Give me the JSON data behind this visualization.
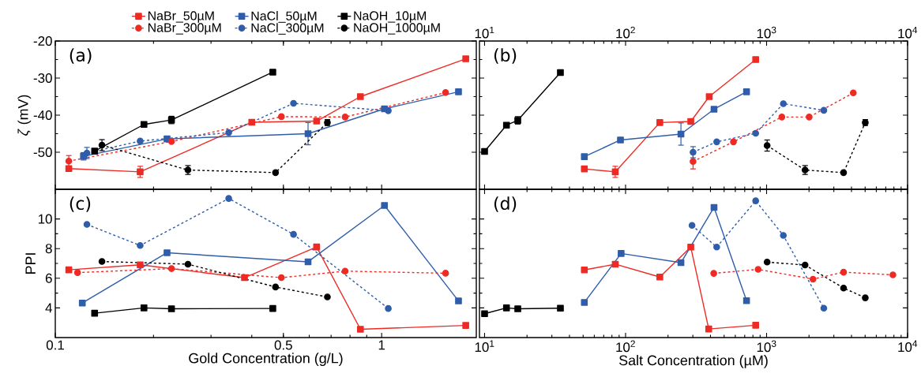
{
  "chart_data": [
    {
      "type": "line",
      "ylabel": "*ζ* (mV)",
      "xlim": [
        0.1,
        1.95
      ],
      "xticks": [
        0.1,
        0.5,
        1
      ],
      "ylim": [
        -60,
        -20
      ],
      "yticks": [
        -50,
        -40,
        -30,
        -20
      ],
      "log": "x",
      "legend": "top",
      "tick_labels": "y",
      "annotations": [
        "(a)"
      ],
      "series": [
        {
          "name": "NaBr_50µM",
          "color": "#ee2a24",
          "marker": "square",
          "line_style": "solid",
          "x": [
            0.11,
            0.182,
            0.4,
            0.632,
            0.861,
            1.81
          ],
          "values": [
            -54.4,
            -55.3,
            -41.9,
            -41.6,
            -35.0,
            -24.8
          ],
          "errors": [
            null,
            1.5,
            null,
            null,
            null,
            null
          ]
        },
        {
          "name": "NaCl_50µM",
          "color": "#2f5daa",
          "marker": "square",
          "line_style": "solid",
          "x": [
            0.122,
            0.22,
            0.595,
            1.02,
            1.72
          ],
          "values": [
            -51.1,
            -46.4,
            -45.0,
            -38.3,
            -33.7
          ],
          "errors": [
            1,
            null,
            3,
            null,
            null
          ]
        },
        {
          "name": "NaOH_10µM",
          "color": "#000000",
          "marker": "square",
          "line_style": "solid",
          "x": [
            0.132,
            0.187,
            0.227,
            0.464
          ],
          "values": [
            -49.7,
            -42.5,
            -41.3,
            -28.4
          ],
          "errors": [
            null,
            null,
            1,
            null
          ]
        },
        {
          "name": "NaBr_300µM",
          "color": "#ee2a24",
          "marker": "circle",
          "line_style": "dashed",
          "x": [
            0.11,
            0.227,
            0.493,
            0.773,
            1.57
          ],
          "values": [
            -52.4,
            -47.1,
            -40.4,
            -40.5,
            -33.9
          ],
          "errors": [
            1.5,
            null,
            null,
            null,
            null
          ]
        },
        {
          "name": "NaCl_300µM",
          "color": "#2f5daa",
          "marker": "circle",
          "line_style": "dashed",
          "x": [
            0.125,
            0.182,
            0.34,
            0.537,
            1.048
          ],
          "values": [
            -50.2,
            -47.0,
            -44.7,
            -36.8,
            -38.8
          ],
          "errors": [
            1.5,
            null,
            null,
            null,
            null
          ]
        },
        {
          "name": "NaOH_1000µM",
          "color": "#000000",
          "marker": "circle",
          "line_style": "dashed",
          "x": [
            0.139,
            0.255,
            0.473,
            0.682
          ],
          "values": [
            -48.1,
            -54.8,
            -55.5,
            -42.0
          ],
          "errors": [
            1.5,
            1.2,
            null,
            0.8
          ]
        }
      ]
    },
    {
      "type": "line",
      "xlim": [
        9.2,
        10000
      ],
      "xticks": [
        {
          "value": 10,
          "label": "10$^{1}$"
        },
        {
          "value": 100,
          "label": "10$^{2}$"
        },
        {
          "value": 1000,
          "label": "10$^{3}$"
        },
        {
          "value": 10000,
          "label": "10$^{4}$"
        }
      ],
      "ylim": [
        -60,
        -20
      ],
      "yticks": [
        -50,
        -40,
        -30,
        -20
      ],
      "log": "x",
      "tick_labels": "x",
      "annotations": [
        "(b)"
      ],
      "series": [
        {
          "color": "#ee2a24",
          "marker": "square",
          "line_style": "solid",
          "x": [
            51,
            84.5,
            175,
            290,
            392,
            837
          ],
          "values": [
            -54.5,
            -55.3,
            -42.0,
            -41.7,
            -35.0,
            -25.0
          ],
          "errors": [
            null,
            1.5,
            null,
            null,
            null,
            null
          ]
        },
        {
          "color": "#2f5daa",
          "marker": "square",
          "line_style": "solid",
          "x": [
            51,
            92,
            247,
            424,
            721
          ],
          "values": [
            -51.2,
            -46.7,
            -45.1,
            -38.4,
            -33.7
          ],
          "errors": [
            null,
            null,
            3,
            null,
            null
          ]
        },
        {
          "color": "#000000",
          "marker": "square",
          "line_style": "solid",
          "x": [
            10,
            14.3,
            17.2,
            34.5
          ],
          "values": [
            -49.8,
            -42.7,
            -41.4,
            -28.5
          ],
          "errors": [
            null,
            null,
            1,
            null
          ]
        },
        {
          "color": "#ee2a24",
          "marker": "circle",
          "line_style": "dashed",
          "x": [
            301,
            582,
            1283,
            2005,
            4120
          ],
          "values": [
            -52.5,
            -47.2,
            -40.5,
            -40.5,
            -34.0
          ],
          "errors": [
            2,
            null,
            null,
            null,
            null
          ]
        },
        {
          "color": "#2f5daa",
          "marker": "circle",
          "line_style": "dashed",
          "x": [
            301,
            443,
            837,
            1315,
            2547
          ],
          "values": [
            -50.0,
            -47.2,
            -44.9,
            -36.9,
            -38.7
          ],
          "errors": [
            1.5,
            null,
            null,
            null,
            null
          ]
        },
        {
          "color": "#000000",
          "marker": "circle",
          "line_style": "dashed",
          "x": [
            1009,
            1875,
            3516,
            5012
          ],
          "values": [
            -48.2,
            -54.8,
            -55.5,
            -42.0
          ],
          "errors": [
            1.5,
            1.2,
            null,
            0.8
          ]
        }
      ]
    },
    {
      "type": "line",
      "xlabel": "Gold Concentration (g/L)",
      "ylabel": "PPI",
      "xlim": [
        0.1,
        1.95
      ],
      "xticks": [
        0.1,
        0.5,
        1
      ],
      "ylim": [
        2,
        12
      ],
      "yticks": [
        4,
        6,
        8,
        10
      ],
      "log": "x",
      "annotations": [
        "(c)"
      ],
      "series": [
        {
          "color": "#ee2a24",
          "marker": "square",
          "line_style": "solid",
          "x": [
            0.11,
            0.182,
            0.38,
            0.632,
            0.861,
            1.81
          ],
          "values": [
            6.57,
            6.91,
            6.04,
            8.11,
            2.56,
            2.82
          ]
        },
        {
          "color": "#2f5daa",
          "marker": "square",
          "line_style": "solid",
          "x": [
            0.121,
            0.22,
            0.595,
            1.02,
            1.72
          ],
          "values": [
            4.33,
            7.72,
            7.11,
            10.91,
            4.47
          ]
        },
        {
          "color": "#000000",
          "marker": "square",
          "line_style": "solid",
          "x": [
            0.132,
            0.187,
            0.227,
            0.464
          ],
          "values": [
            3.64,
            4.0,
            3.94,
            3.96
          ]
        },
        {
          "color": "#ee2a24",
          "marker": "circle",
          "line_style": "dashed",
          "x": [
            0.117,
            0.227,
            0.493,
            0.773,
            1.57
          ],
          "values": [
            6.38,
            6.65,
            6.04,
            6.48,
            6.34
          ]
        },
        {
          "color": "#2f5daa",
          "marker": "circle",
          "line_style": "dashed",
          "x": [
            0.125,
            0.182,
            0.34,
            0.537,
            1.048
          ],
          "values": [
            9.63,
            8.21,
            11.38,
            8.96,
            3.96
          ]
        },
        {
          "color": "#000000",
          "marker": "circle",
          "line_style": "dashed",
          "x": [
            0.139,
            0.255,
            0.473,
            0.682
          ],
          "values": [
            7.13,
            6.95,
            5.41,
            4.74
          ]
        }
      ]
    },
    {
      "type": "line",
      "xlabel": "Salt Concentration (µM)",
      "xlim": [
        9.2,
        10000
      ],
      "xticks": [
        {
          "value": 10,
          "label": "10$^{1}$"
        },
        {
          "value": 100,
          "label": "10$^{2}$"
        },
        {
          "value": 1000,
          "label": "10$^{3}$"
        },
        {
          "value": 10000,
          "label": "10$^{4}$"
        }
      ],
      "ylim": [
        2,
        12
      ],
      "yticks": [
        4,
        6,
        8,
        10
      ],
      "log": "x",
      "tick_labels": "x",
      "annotations": [
        "(d)"
      ],
      "series": [
        {
          "color": "#ee2a24",
          "marker": "square",
          "line_style": "solid",
          "x": [
            51,
            84.5,
            175,
            290,
            389,
            837
          ],
          "values": [
            6.56,
            6.95,
            6.08,
            8.1,
            2.58,
            2.83
          ]
        },
        {
          "color": "#2f5daa",
          "marker": "square",
          "line_style": "solid",
          "x": [
            51,
            93,
            247,
            424,
            721
          ],
          "values": [
            4.37,
            7.67,
            7.05,
            10.78,
            4.49
          ]
        },
        {
          "color": "#000000",
          "marker": "square",
          "line_style": "solid",
          "x": [
            10,
            14.3,
            17.2,
            34.5
          ],
          "values": [
            3.61,
            4.0,
            3.94,
            3.98
          ]
        },
        {
          "color": "#ee2a24",
          "marker": "circle",
          "line_style": "dashed",
          "x": [
            422,
            871,
            2134,
            3516,
            7870
          ],
          "values": [
            6.33,
            6.6,
            5.94,
            6.41,
            6.23
          ]
        },
        {
          "color": "#2f5daa",
          "marker": "circle",
          "line_style": "dashed",
          "x": [
            296,
            443,
            837,
            1315,
            2547
          ],
          "values": [
            9.57,
            8.1,
            11.22,
            8.89,
            3.98
          ]
        },
        {
          "color": "#000000",
          "marker": "circle",
          "line_style": "dashed",
          "x": [
            1009,
            1875,
            3516,
            5012
          ],
          "values": [
            7.09,
            6.89,
            5.34,
            4.68
          ]
        }
      ]
    }
  ]
}
